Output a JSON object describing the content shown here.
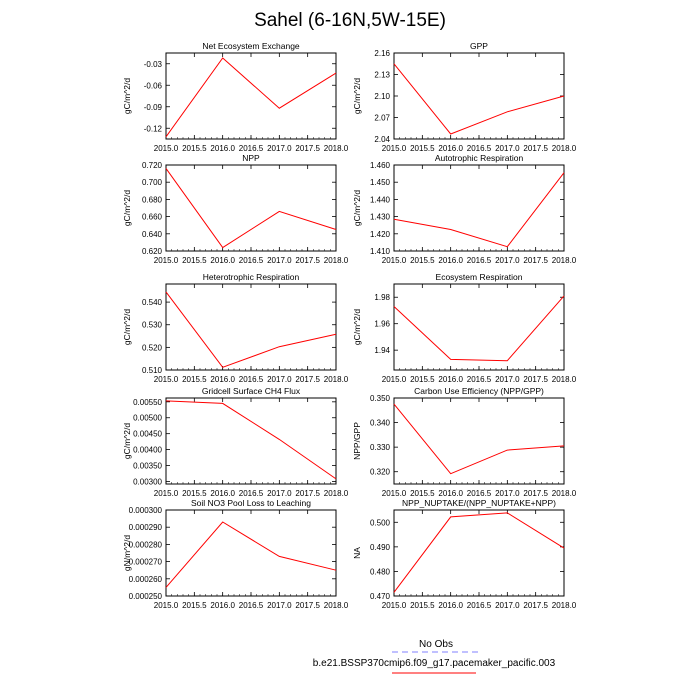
{
  "title": "Sahel (6-16N,5W-15E)",
  "series_color": "#ff0000",
  "obs_color": "#8080ff",
  "legend": {
    "obs_label": "No Obs",
    "model_label": "b.e21.BSSP370cmip6.f09_g17.pacemaker_pacific.003"
  },
  "chart_data": [
    {
      "type": "line",
      "title": "Net Ecosystem Exchange",
      "ylabel": "gC/m^2/d",
      "x": [
        2015,
        2016,
        2017,
        2018
      ],
      "values": [
        -0.132,
        -0.022,
        -0.092,
        -0.043
      ],
      "xlim": [
        2015,
        2018
      ],
      "ylim": [
        -0.135,
        -0.015
      ],
      "yticks": [
        "-0.12",
        "-0.09",
        "-0.06",
        "-0.03"
      ],
      "ytick_values": [
        -0.12,
        -0.09,
        -0.06,
        -0.03
      ],
      "xticks": [
        "2015.0",
        "2015.5",
        "2016.0",
        "2016.5",
        "2017.0",
        "2017.5",
        "2018.0"
      ]
    },
    {
      "type": "line",
      "title": "GPP",
      "ylabel": "gC/m^2/d",
      "x": [
        2015,
        2016,
        2017,
        2018
      ],
      "values": [
        2.145,
        2.047,
        2.078,
        2.1
      ],
      "xlim": [
        2015,
        2018
      ],
      "ylim": [
        2.04,
        2.16
      ],
      "yticks": [
        "2.04",
        "2.07",
        "2.10",
        "2.13",
        "2.16"
      ],
      "ytick_values": [
        2.04,
        2.07,
        2.1,
        2.13,
        2.16
      ],
      "xticks": [
        "2015.0",
        "2015.5",
        "2016.0",
        "2016.5",
        "2017.0",
        "2017.5",
        "2018.0"
      ]
    },
    {
      "type": "line",
      "title": "NPP",
      "ylabel": "gC/m^2/d",
      "x": [
        2015,
        2016,
        2017,
        2018
      ],
      "values": [
        0.716,
        0.624,
        0.666,
        0.645
      ],
      "xlim": [
        2015,
        2018
      ],
      "ylim": [
        0.62,
        0.72
      ],
      "yticks": [
        "0.620",
        "0.640",
        "0.660",
        "0.680",
        "0.700",
        "0.720"
      ],
      "ytick_values": [
        0.62,
        0.64,
        0.66,
        0.68,
        0.7,
        0.72
      ],
      "xticks": [
        "2015.0",
        "2015.5",
        "2016.0",
        "2016.5",
        "2017.0",
        "2017.5",
        "2018.0"
      ]
    },
    {
      "type": "line",
      "title": "Autotrophic Respiration",
      "ylabel": "gC/m^2/d",
      "x": [
        2015,
        2016,
        2017,
        2018
      ],
      "values": [
        1.4285,
        1.4225,
        1.4125,
        1.4555
      ],
      "xlim": [
        2015,
        2018
      ],
      "ylim": [
        1.41,
        1.46
      ],
      "yticks": [
        "1.410",
        "1.420",
        "1.430",
        "1.440",
        "1.450",
        "1.460"
      ],
      "ytick_values": [
        1.41,
        1.42,
        1.43,
        1.44,
        1.45,
        1.46
      ],
      "xticks": [
        "2015.0",
        "2015.5",
        "2016.0",
        "2016.5",
        "2017.0",
        "2017.5",
        "2018.0"
      ]
    },
    {
      "type": "line",
      "title": "Heterotrophic Respiration",
      "ylabel": "gC/m^2/d",
      "x": [
        2015,
        2016,
        2017,
        2018
      ],
      "values": [
        0.5445,
        0.5112,
        0.5203,
        0.5258
      ],
      "xlim": [
        2015,
        2018
      ],
      "ylim": [
        0.51,
        0.548
      ],
      "yticks": [
        "0.510",
        "0.520",
        "0.530",
        "0.540"
      ],
      "ytick_values": [
        0.51,
        0.52,
        0.53,
        0.54
      ],
      "xticks": [
        "2015.0",
        "2015.5",
        "2016.0",
        "2016.5",
        "2017.0",
        "2017.5",
        "2018.0"
      ]
    },
    {
      "type": "line",
      "title": "Ecosystem Respiration",
      "ylabel": "gC/m^2/d",
      "x": [
        2015,
        2016,
        2017,
        2018
      ],
      "values": [
        1.973,
        1.933,
        1.932,
        1.981
      ],
      "xlim": [
        2015,
        2018
      ],
      "ylim": [
        1.925,
        1.99
      ],
      "yticks": [
        "1.94",
        "1.96",
        "1.98"
      ],
      "ytick_values": [
        1.94,
        1.96,
        1.98
      ],
      "xticks": [
        "2015.0",
        "2015.5",
        "2016.0",
        "2016.5",
        "2017.0",
        "2017.5",
        "2018.0"
      ]
    },
    {
      "type": "line",
      "title": "Gridcell Surface CH4 Flux",
      "ylabel": "gC/m^2/d",
      "x": [
        2015,
        2016,
        2017,
        2018
      ],
      "values": [
        0.00553,
        0.00545,
        0.00432,
        0.00308
      ],
      "xlim": [
        2015,
        2018
      ],
      "ylim": [
        0.00292,
        0.00562
      ],
      "yticks": [
        "0.00300",
        "0.00350",
        "0.00400",
        "0.00450",
        "0.00500",
        "0.00550"
      ],
      "ytick_values": [
        0.003,
        0.0035,
        0.004,
        0.0045,
        0.005,
        0.0055
      ],
      "xticks": [
        "2015.0",
        "2015.5",
        "2016.0",
        "2016.5",
        "2017.0",
        "2017.5",
        "2018.0"
      ]
    },
    {
      "type": "line",
      "title": "Carbon Use Efficiency (NPP/GPP)",
      "ylabel": "NPP/GPP",
      "x": [
        2015,
        2016,
        2017,
        2018
      ],
      "values": [
        0.3475,
        0.3192,
        0.3288,
        0.3305
      ],
      "xlim": [
        2015,
        2018
      ],
      "ylim": [
        0.315,
        0.35
      ],
      "yticks": [
        "0.320",
        "0.330",
        "0.340",
        "0.350"
      ],
      "ytick_values": [
        0.32,
        0.33,
        0.34,
        0.35
      ],
      "xticks": [
        "2015.0",
        "2015.5",
        "2016.0",
        "2016.5",
        "2017.0",
        "2017.5",
        "2018.0"
      ]
    },
    {
      "type": "line",
      "title": "Soil NO3 Pool Loss to Leaching",
      "ylabel": "gN/m^2/d",
      "x": [
        2015,
        2016,
        2017,
        2018
      ],
      "values": [
        0.000255,
        0.000293,
        0.000273,
        0.000265
      ],
      "xlim": [
        2015,
        2018
      ],
      "ylim": [
        0.00025,
        0.0003
      ],
      "yticks": [
        "0.000250",
        "0.000260",
        "0.000270",
        "0.000280",
        "0.000290",
        "0.000300"
      ],
      "ytick_values": [
        0.00025,
        0.00026,
        0.00027,
        0.00028,
        0.00029,
        0.0003
      ],
      "xticks": [
        "2015.0",
        "2015.5",
        "2016.0",
        "2016.5",
        "2017.0",
        "2017.5",
        "2018.0"
      ]
    },
    {
      "type": "line",
      "title": "NPP_NUPTAKE/(NPP_NUPTAKE+NPP)",
      "ylabel": "NA",
      "x": [
        2015,
        2016,
        2017,
        2018
      ],
      "values": [
        0.4715,
        0.5022,
        0.5038,
        0.4895
      ],
      "xlim": [
        2015,
        2018
      ],
      "ylim": [
        0.47,
        0.505
      ],
      "yticks": [
        "0.470",
        "0.480",
        "0.490",
        "0.500"
      ],
      "ytick_values": [
        0.47,
        0.48,
        0.49,
        0.5
      ],
      "xticks": [
        "2015.0",
        "2015.5",
        "2016.0",
        "2016.5",
        "2017.0",
        "2017.5",
        "2018.0"
      ]
    }
  ]
}
